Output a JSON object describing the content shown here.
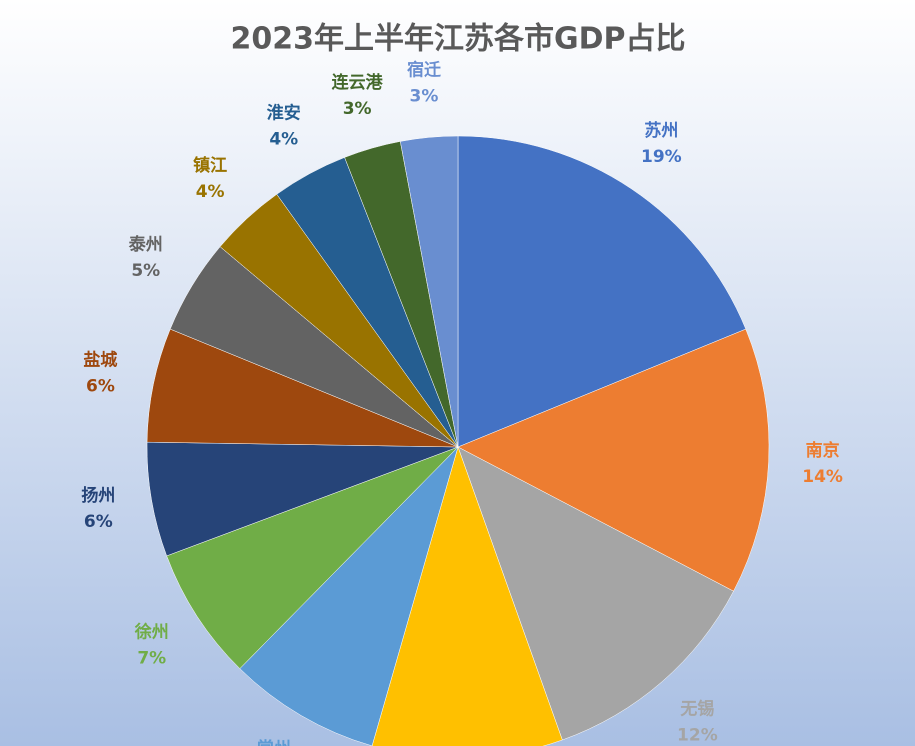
{
  "chart_data": {
    "type": "pie",
    "title": "2023年上半年江苏各市GDP占比",
    "categories": [
      "苏州",
      "南京",
      "无锡",
      null,
      "常州",
      "徐州",
      "扬州",
      "盐城",
      "泰州",
      "镇江",
      "淮安",
      "连云港",
      "宿迁"
    ],
    "values": [
      19,
      14,
      12,
      10,
      8,
      7,
      6,
      6,
      5,
      4,
      4,
      3,
      3
    ],
    "value_labels": [
      "19%",
      "14%",
      "12%",
      null,
      null,
      "7%",
      "6%",
      "6%",
      "5%",
      "4%",
      "4%",
      "3%",
      "3%"
    ],
    "colors": [
      "#4472c4",
      "#ed7d31",
      "#a5a5a5",
      "#ffc000",
      "#5b9bd5",
      "#70ad47",
      "#264478",
      "#9e480e",
      "#636363",
      "#997300",
      "#255e91",
      "#43682b",
      "#698ed0"
    ]
  }
}
